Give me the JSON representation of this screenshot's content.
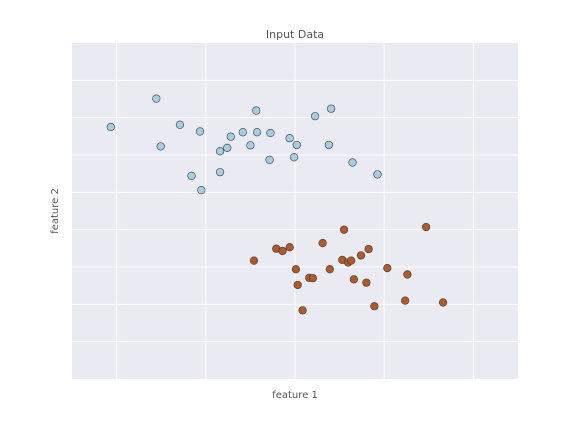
{
  "chart_data": {
    "type": "scatter",
    "title": "Input Data",
    "xlabel": "feature 1",
    "ylabel": "feature 2",
    "xlim": [
      0,
      10
    ],
    "ylim": [
      0,
      9
    ],
    "grid": true,
    "tick_labels_visible": false,
    "background_color": "#eaeaf2",
    "grid_color": "#ffffff",
    "point_edge_color": "#3a3a3a",
    "series": [
      {
        "color": "#a6cee3",
        "x": [
          0.87,
          1.89,
          1.99,
          2.42,
          2.68,
          2.87,
          2.9,
          3.32,
          3.32,
          3.48,
          3.56,
          3.83,
          4.0,
          4.13,
          4.15,
          4.43,
          4.45,
          4.88,
          4.98,
          5.04,
          5.45,
          5.76,
          5.81,
          6.29,
          6.85
        ],
        "y": [
          6.75,
          7.51,
          6.23,
          6.81,
          5.44,
          6.63,
          5.06,
          6.1,
          5.54,
          6.19,
          6.49,
          6.61,
          6.26,
          7.19,
          6.61,
          5.87,
          6.59,
          6.45,
          5.94,
          6.27,
          7.04,
          6.27,
          7.24,
          5.8,
          5.48
        ]
      },
      {
        "color": "#b15928",
        "x": [
          4.08,
          4.58,
          4.72,
          4.88,
          5.02,
          5.06,
          5.17,
          5.32,
          5.4,
          5.62,
          5.78,
          6.06,
          6.1,
          6.19,
          6.26,
          6.32,
          6.48,
          6.6,
          6.78,
          6.65,
          7.07,
          7.47,
          7.52,
          7.94,
          8.32
        ],
        "y": [
          3.17,
          3.49,
          3.43,
          3.53,
          2.94,
          2.52,
          1.84,
          2.71,
          2.7,
          3.64,
          2.94,
          3.19,
          4.0,
          3.12,
          3.17,
          2.67,
          3.31,
          2.58,
          1.95,
          3.48,
          2.97,
          2.1,
          2.8,
          4.07,
          2.05
        ]
      }
    ]
  }
}
